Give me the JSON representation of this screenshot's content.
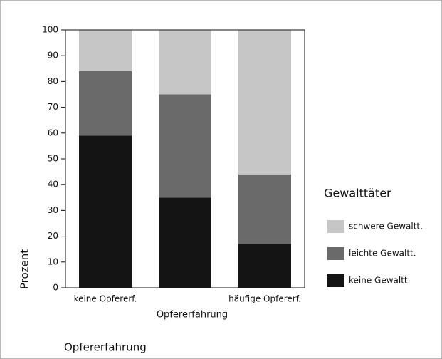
{
  "chart_data": {
    "type": "stacked_bar",
    "categories": [
      "keine Opfererf.",
      null,
      "häufige Opfererf."
    ],
    "series": [
      {
        "name": "keine Gewaltt.",
        "color": "#141414",
        "values": [
          59,
          35,
          17
        ]
      },
      {
        "name": "leichte Gewaltt.",
        "color": "#6a6a6a",
        "values": [
          25,
          40,
          27
        ]
      },
      {
        "name": "schwere Gewaltt.",
        "color": "#c6c6c6",
        "values": [
          16,
          25,
          56
        ]
      }
    ],
    "ylim": [
      0,
      100
    ],
    "yticks": [
      0,
      10,
      20,
      30,
      40,
      50,
      60,
      70,
      80,
      90,
      100
    ],
    "ylabel": "Prozent",
    "xlabel": "Opfererfahrung",
    "legend_title": "Gewalttäter",
    "legend": "right"
  },
  "caption": "Opfererfahrung"
}
